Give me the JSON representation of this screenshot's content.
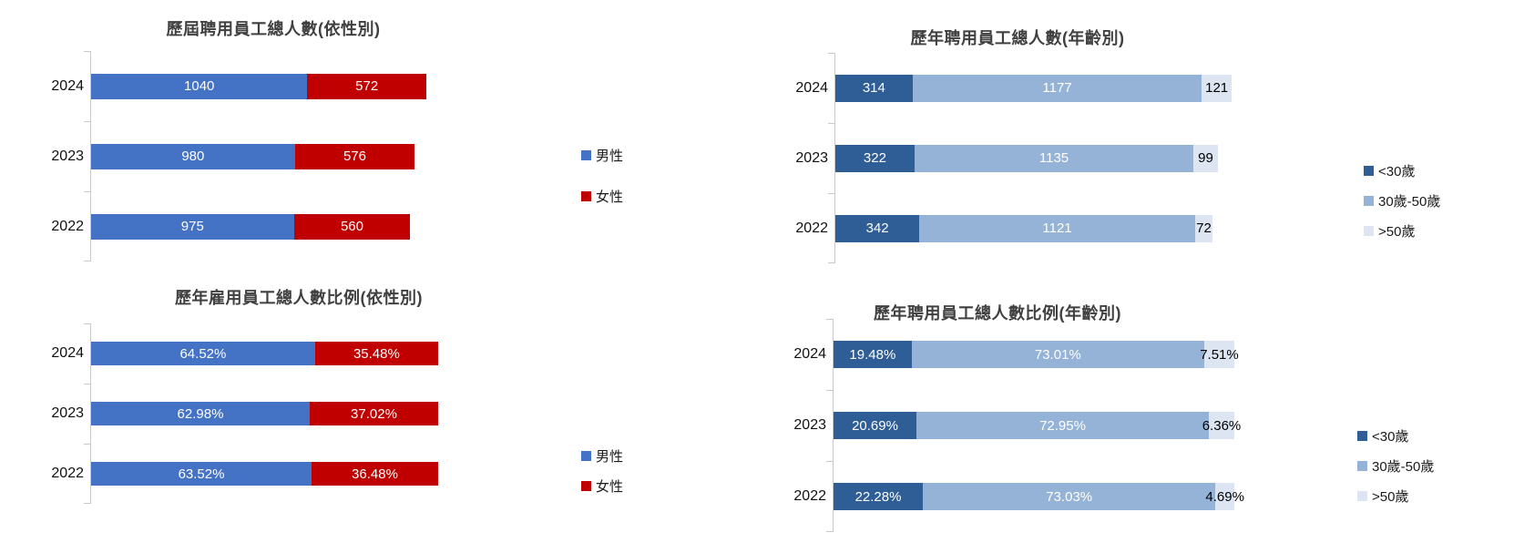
{
  "colors": {
    "male_blue": "#4472C4",
    "female_red": "#C00000",
    "age_under30_dark_blue": "#2F5D96",
    "age_30_50_medium_blue": "#95B3D7",
    "age_over50_light_blue": "#DCE5F1",
    "axis_gray": "#C9C9C9",
    "title_gray": "#404040"
  },
  "chart_data": [
    {
      "type": "bar",
      "orientation": "horizontal",
      "stacked": true,
      "title": "歷屆聘用員工總人數(依性別)",
      "categories": [
        "2024",
        "2023",
        "2022"
      ],
      "axis_max": 1612,
      "grid": false,
      "legend_position": "right",
      "series": [
        {
          "name": "男性",
          "color": "#4472C4",
          "label_color": "#FFFFFF",
          "values": [
            1040,
            980,
            975
          ],
          "labels": [
            "1040",
            "980",
            "975"
          ]
        },
        {
          "name": "女性",
          "color": "#C00000",
          "label_color": "#FFFFFF",
          "values": [
            572,
            576,
            560
          ],
          "labels": [
            "572",
            "576",
            "560"
          ]
        }
      ]
    },
    {
      "type": "bar",
      "orientation": "horizontal",
      "stacked": true,
      "title": "歷年聘用員工總人數(年齡別)",
      "categories": [
        "2024",
        "2023",
        "2022"
      ],
      "axis_max": 1612,
      "grid": false,
      "legend_position": "right",
      "series": [
        {
          "name": "<30歲",
          "color": "#2F5D96",
          "label_color": "#FFFFFF",
          "values": [
            314,
            322,
            342
          ],
          "labels": [
            "314",
            "322",
            "342"
          ]
        },
        {
          "name": "30歲-50歲",
          "color": "#95B3D7",
          "label_color": "#FFFFFF",
          "values": [
            1177,
            1135,
            1121
          ],
          "labels": [
            "1177",
            "1135",
            "1121"
          ]
        },
        {
          "name": ">50歲",
          "color": "#DCE5F1",
          "label_color": "#000000",
          "values": [
            121,
            99,
            72
          ],
          "labels": [
            "121",
            "99",
            "72"
          ]
        }
      ]
    },
    {
      "type": "bar",
      "orientation": "horizontal",
      "stacked": true,
      "title": "歷年雇用員工總人數比例(依性別)",
      "categories": [
        "2024",
        "2023",
        "2022"
      ],
      "axis_max": 100,
      "grid": false,
      "legend_position": "right",
      "series": [
        {
          "name": "男性",
          "color": "#4472C4",
          "label_color": "#FFFFFF",
          "values": [
            64.52,
            62.98,
            63.52
          ],
          "labels": [
            "64.52%",
            "62.98%",
            "63.52%"
          ]
        },
        {
          "name": "女性",
          "color": "#C00000",
          "label_color": "#FFFFFF",
          "values": [
            35.48,
            37.02,
            36.48
          ],
          "labels": [
            "35.48%",
            "37.02%",
            "36.48%"
          ]
        }
      ]
    },
    {
      "type": "bar",
      "orientation": "horizontal",
      "stacked": true,
      "title": "歷年聘用員工總人數比例(年齡別)",
      "categories": [
        "2024",
        "2023",
        "2022"
      ],
      "axis_max": 100,
      "grid": false,
      "legend_position": "right",
      "series": [
        {
          "name": "<30歲",
          "color": "#2F5D96",
          "label_color": "#FFFFFF",
          "values": [
            19.48,
            20.69,
            22.28
          ],
          "labels": [
            "19.48%",
            "20.69%",
            "22.28%"
          ]
        },
        {
          "name": "30歲-50歲",
          "color": "#95B3D7",
          "label_color": "#FFFFFF",
          "values": [
            73.01,
            72.95,
            73.03
          ],
          "labels": [
            "73.01%",
            "72.95%",
            "73.03%"
          ]
        },
        {
          "name": ">50歲",
          "color": "#DCE5F1",
          "label_color": "#000000",
          "values": [
            7.51,
            6.36,
            4.69
          ],
          "labels": [
            "7.51%",
            "6.36%",
            "4.69%"
          ]
        }
      ]
    }
  ]
}
